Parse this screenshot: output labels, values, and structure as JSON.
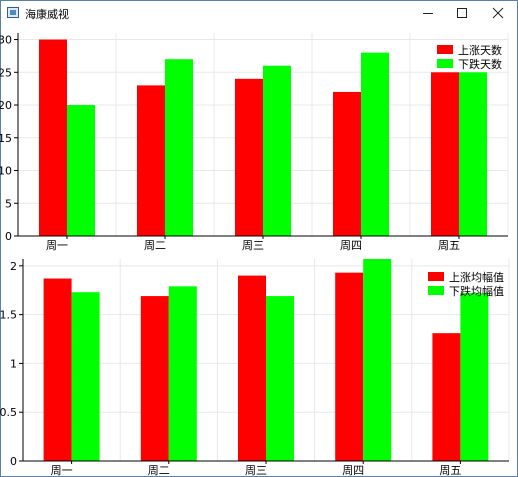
{
  "window": {
    "title": "海康威视",
    "icons": {
      "app": "app-window-icon",
      "minimize": "minimize-icon",
      "maximize": "maximize-icon",
      "close": "close-icon"
    }
  },
  "colors": {
    "up": "#ff0000",
    "down": "#00ff00",
    "grid": "#e8e8e8"
  },
  "chart_data": [
    {
      "type": "bar",
      "categories": [
        "周一",
        "周二",
        "周三",
        "周四",
        "周五"
      ],
      "series": [
        {
          "name": "上涨天数",
          "values": [
            30,
            23,
            24,
            22,
            25
          ]
        },
        {
          "name": "下跌天数",
          "values": [
            20,
            27,
            26,
            28,
            25
          ]
        }
      ],
      "ylim": [
        0,
        31
      ],
      "yticks": [
        "0",
        "5",
        "10",
        "15",
        "20",
        "25",
        "30"
      ],
      "ytick_values": [
        0,
        5,
        10,
        15,
        20,
        25,
        30
      ],
      "grid": true,
      "legend": "top-right"
    },
    {
      "type": "bar",
      "categories": [
        "周一",
        "周二",
        "周三",
        "周四",
        "周五"
      ],
      "series": [
        {
          "name": "上涨均幅值",
          "values": [
            1.87,
            1.69,
            1.9,
            1.93,
            1.31
          ]
        },
        {
          "name": "下跌均幅值",
          "values": [
            1.73,
            1.79,
            1.69,
            2.07,
            1.72
          ]
        }
      ],
      "ylim": [
        0,
        2.07
      ],
      "yticks": [
        "0",
        "0.5",
        "1",
        "1.5",
        "2"
      ],
      "ytick_values": [
        0,
        0.5,
        1,
        1.5,
        2
      ],
      "grid": true,
      "legend": "top-right"
    }
  ]
}
